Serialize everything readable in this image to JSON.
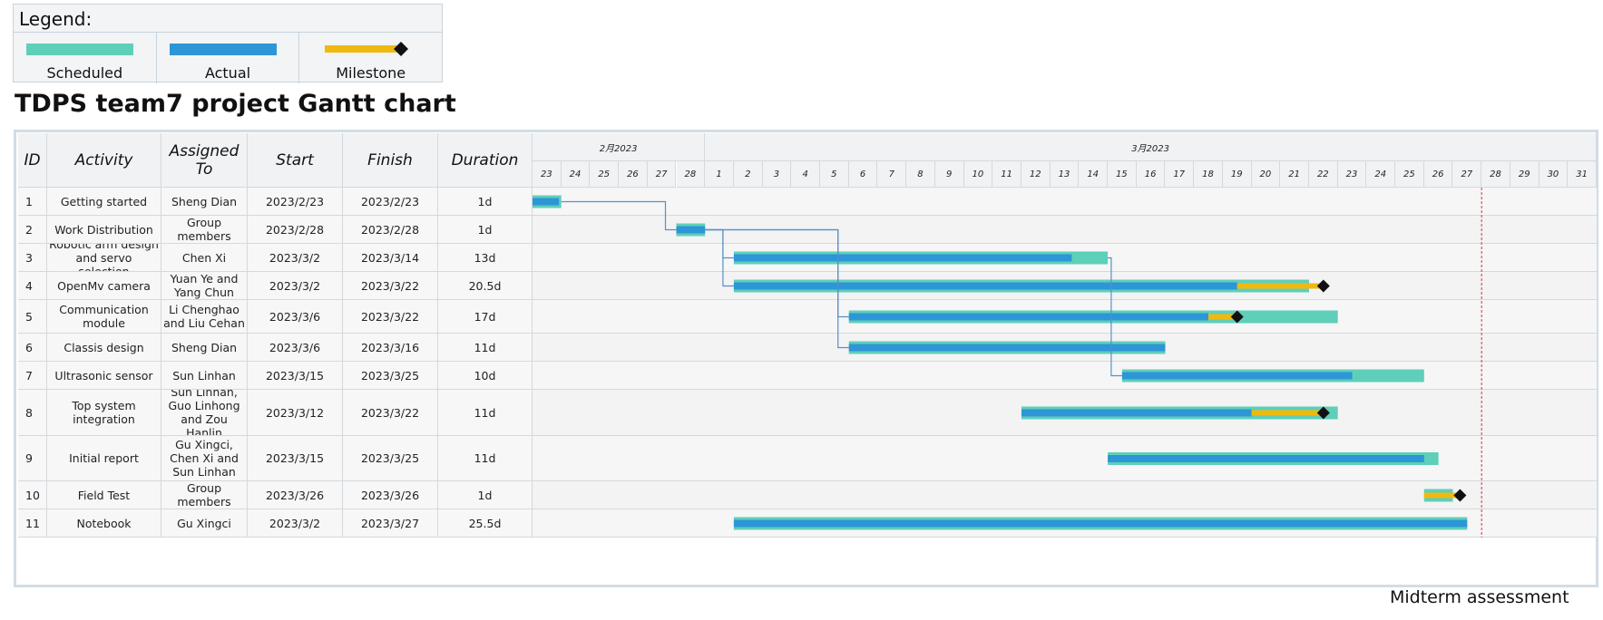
{
  "legend": {
    "title": "Legend:",
    "items": [
      {
        "label": "Scheduled",
        "type": "scheduled"
      },
      {
        "label": "Actual",
        "type": "actual"
      },
      {
        "label": "Milestone",
        "type": "milestone"
      }
    ]
  },
  "colors": {
    "scheduled": "#5ecfb9",
    "actual": "#2d96d6",
    "milestone": "#f0b90f",
    "diamond": "#111111",
    "link": "#5a8fc6",
    "deadline": "#e03030"
  },
  "title": "TDPS team7 project Gantt chart",
  "midterm_label": "Midterm assessment",
  "columns": [
    "ID",
    "Activity",
    "Assigned To",
    "Start",
    "Finish",
    "Duration"
  ],
  "months": [
    {
      "label": "2月2023"
    },
    {
      "label": "3月2023"
    }
  ],
  "chart_data": {
    "type": "gantt",
    "title": "TDPS team7 project Gantt chart",
    "timeline": {
      "start": "2023-02-23",
      "end": "2023-03-31",
      "day_labels": [
        "23",
        "24",
        "25",
        "26",
        "27",
        "28",
        "1",
        "2",
        "3",
        "4",
        "5",
        "6",
        "7",
        "8",
        "9",
        "10",
        "11",
        "12",
        "13",
        "14",
        "15",
        "16",
        "17",
        "18",
        "19",
        "20",
        "21",
        "22",
        "23",
        "24",
        "25",
        "26",
        "27",
        "28",
        "29",
        "30",
        "31"
      ]
    },
    "deadline": {
      "date": "2023-03-27",
      "label": "Midterm assessment"
    },
    "tasks": [
      {
        "id": "1",
        "activity": "Getting started",
        "assigned": "Sheng Dian",
        "start": "2023/2/23",
        "finish": "2023/2/23",
        "duration": "1d",
        "scheduled": [
          "2023-02-23",
          "2023-02-24"
        ],
        "actual": [
          "2023-02-23",
          "2023-02-23 22:00"
        ]
      },
      {
        "id": "2",
        "activity": "Work Distribution",
        "assigned": "Group members",
        "start": "2023/2/28",
        "finish": "2023/2/28",
        "duration": "1d",
        "scheduled": [
          "2023-02-28",
          "2023-03-01"
        ],
        "actual": [
          "2023-02-28",
          "2023-03-01"
        ]
      },
      {
        "id": "3",
        "activity": "Robotic arm design and servo selection",
        "assigned": "Chen Xi",
        "start": "2023/3/2",
        "finish": "2023/3/14",
        "duration": "13d",
        "scheduled": [
          "2023-03-02",
          "2023-03-15"
        ],
        "actual": [
          "2023-03-02",
          "2023-03-13 18:00"
        ]
      },
      {
        "id": "4",
        "activity": "OpenMv camera",
        "assigned": "Yuan Ye and Yang Chun",
        "start": "2023/3/2",
        "finish": "2023/3/22",
        "duration": "20.5d",
        "scheduled": [
          "2023-03-02",
          "2023-03-22"
        ],
        "actual": [
          "2023-03-02",
          "2023-03-19 12:00"
        ],
        "milestone": [
          "2023-03-19 12:00",
          "2023-03-22 12:00"
        ]
      },
      {
        "id": "5",
        "activity": "Communication module",
        "assigned": "Li Chenghao and Liu Cehan",
        "start": "2023/3/6",
        "finish": "2023/3/22",
        "duration": "17d",
        "scheduled": [
          "2023-03-06",
          "2023-03-23"
        ],
        "actual": [
          "2023-03-06",
          "2023-03-18 12:00"
        ],
        "milestone": [
          "2023-03-18 12:00",
          "2023-03-19 12:00"
        ]
      },
      {
        "id": "6",
        "activity": "Classis design",
        "assigned": "Sheng Dian",
        "start": "2023/3/6",
        "finish": "2023/3/16",
        "duration": "11d",
        "scheduled": [
          "2023-03-06",
          "2023-03-17"
        ],
        "actual": [
          "2023-03-06",
          "2023-03-17"
        ]
      },
      {
        "id": "7",
        "activity": "Ultrasonic sensor",
        "assigned": "Sun Linhan",
        "start": "2023/3/15",
        "finish": "2023/3/25",
        "duration": "10d",
        "scheduled": [
          "2023-03-15 12:00",
          "2023-03-26"
        ],
        "actual": [
          "2023-03-15 12:00",
          "2023-03-23 12:00"
        ]
      },
      {
        "id": "8",
        "activity": "Top system integration",
        "assigned": "Sun Linhan, Guo Linhong and Zou Hanlin",
        "start": "2023/3/12",
        "finish": "2023/3/22",
        "duration": "11d",
        "scheduled": [
          "2023-03-12",
          "2023-03-23"
        ],
        "actual": [
          "2023-03-12",
          "2023-03-20"
        ],
        "milestone": [
          "2023-03-20",
          "2023-03-22 12:00"
        ]
      },
      {
        "id": "9",
        "activity": "Initial report",
        "assigned": "Gu Xingci, Chen Xi and Sun Linhan",
        "start": "2023/3/15",
        "finish": "2023/3/25",
        "duration": "11d",
        "scheduled": [
          "2023-03-15",
          "2023-03-26 12:00"
        ],
        "actual": [
          "2023-03-15",
          "2023-03-26"
        ]
      },
      {
        "id": "10",
        "activity": "Field Test",
        "assigned": "Group members",
        "start": "2023/3/26",
        "finish": "2023/3/26",
        "duration": "1d",
        "scheduled": [
          "2023-03-26",
          "2023-03-27"
        ],
        "actual": [
          "2023-03-26",
          "2023-03-26"
        ],
        "milestone": [
          "2023-03-26",
          "2023-03-27 06:00"
        ]
      },
      {
        "id": "11",
        "activity": "Notebook",
        "assigned": "Gu Xingci",
        "start": "2023/3/2",
        "finish": "2023/3/27",
        "duration": "25.5d",
        "scheduled": [
          "2023-03-02",
          "2023-03-27 12:00"
        ],
        "actual": [
          "2023-03-02",
          "2023-03-27 12:00"
        ]
      }
    ],
    "dependencies": [
      {
        "from": "1",
        "to": "2"
      },
      {
        "from": "2",
        "to": "3"
      },
      {
        "from": "2",
        "to": "4"
      },
      {
        "from": "2",
        "to": "5"
      },
      {
        "from": "2",
        "to": "6"
      },
      {
        "from": "3",
        "to": "7"
      }
    ]
  }
}
